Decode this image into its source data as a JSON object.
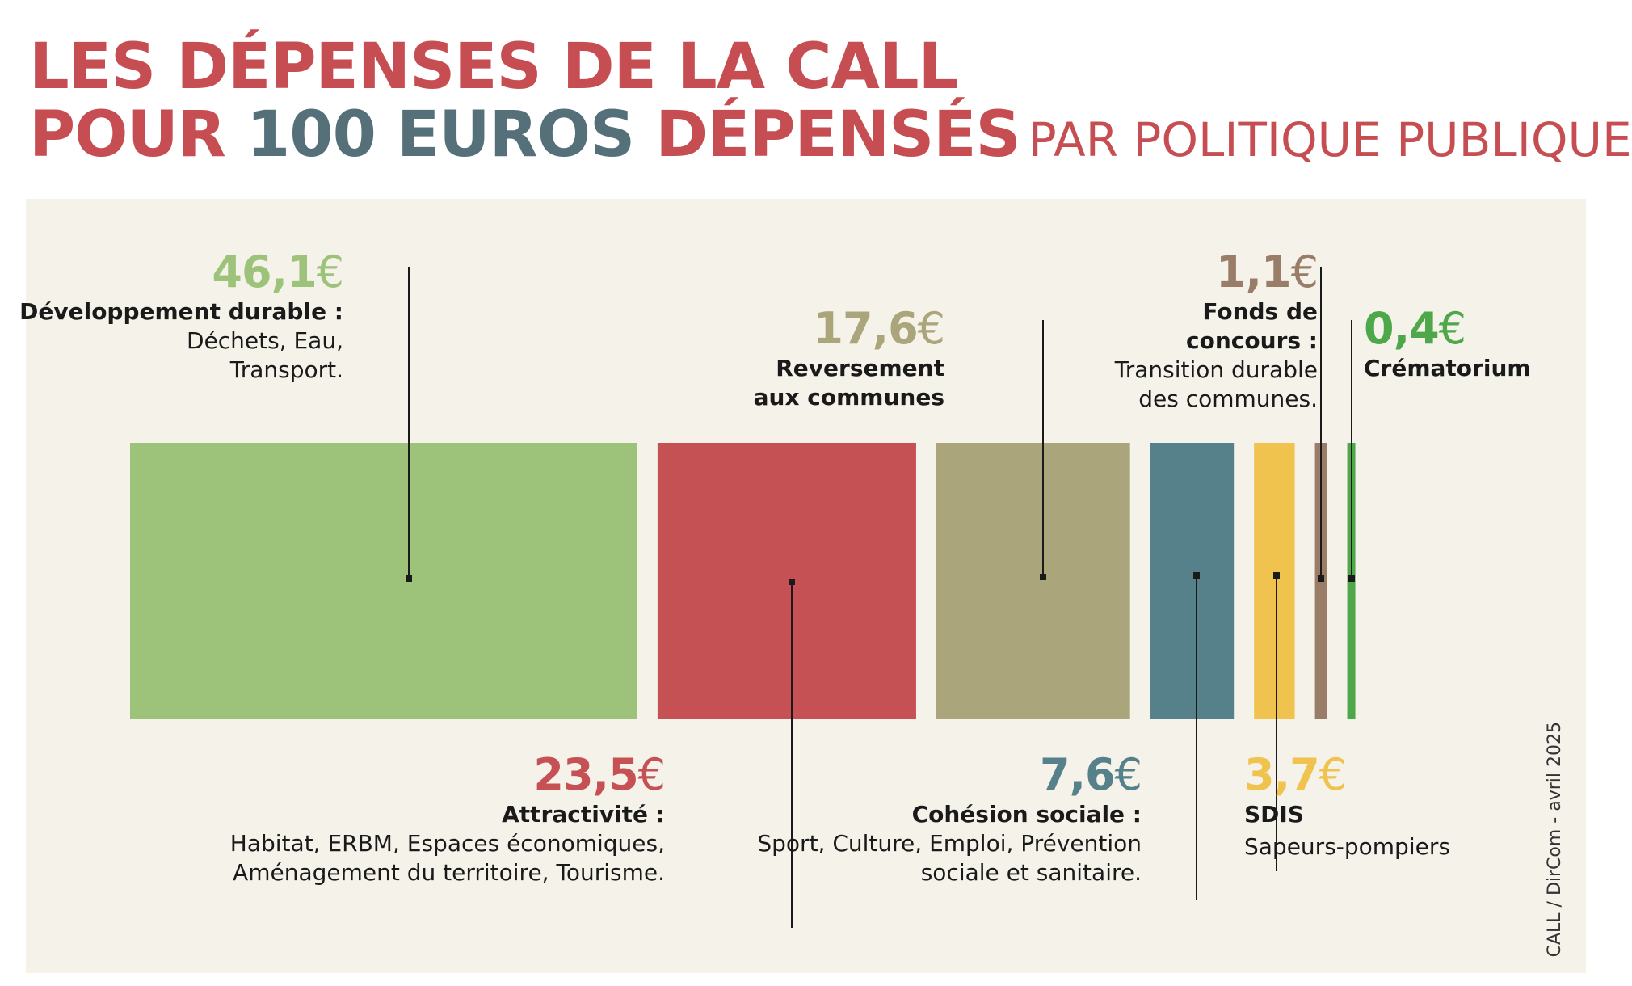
{
  "title": {
    "line1": "LES DÉPENSES DE LA CALL",
    "line2_a": "POUR ",
    "line2_num": "100",
    "line2_euros": " EUROS",
    "line2_b": " DÉPENSÉS",
    "line2_sub": "PAR POLITIQUE PUBLIQUE"
  },
  "credit": "CALL / DirCom - avril 2025",
  "chart_data": {
    "type": "bar",
    "currency": "€",
    "categories": [
      {
        "name": "Développement durable :",
        "desc": "Déchets, Eau, Transport.",
        "value": 46.1,
        "label": "46,1",
        "color": "#9dc27a"
      },
      {
        "name": "Attractivité :",
        "desc": "Habitat, ERBM, Espaces économiques, Aménagement du territoire, Tourisme.",
        "value": 23.5,
        "label": "23,5",
        "color": "#c55155"
      },
      {
        "name": "Reversement aux communes",
        "desc": "",
        "value": 17.6,
        "label": "17,6",
        "color": "#aaa57a"
      },
      {
        "name": "Cohésion sociale :",
        "desc": "Sport, Culture, Emploi, Prévention sociale et sanitaire.",
        "value": 7.6,
        "label": "7,6",
        "color": "#56808a"
      },
      {
        "name": "SDIS",
        "desc": "Sapeurs-pompiers",
        "value": 3.7,
        "label": "3,7",
        "color": "#f0c24e"
      },
      {
        "name": "Fonds de concours :",
        "desc": "Transition durable des communes.",
        "value": 1.1,
        "label": "1,1",
        "color": "#9a7d68"
      },
      {
        "name": "Crématorium",
        "desc": "",
        "value": 0.4,
        "label": "0,4",
        "color": "#4ea84a"
      }
    ]
  }
}
